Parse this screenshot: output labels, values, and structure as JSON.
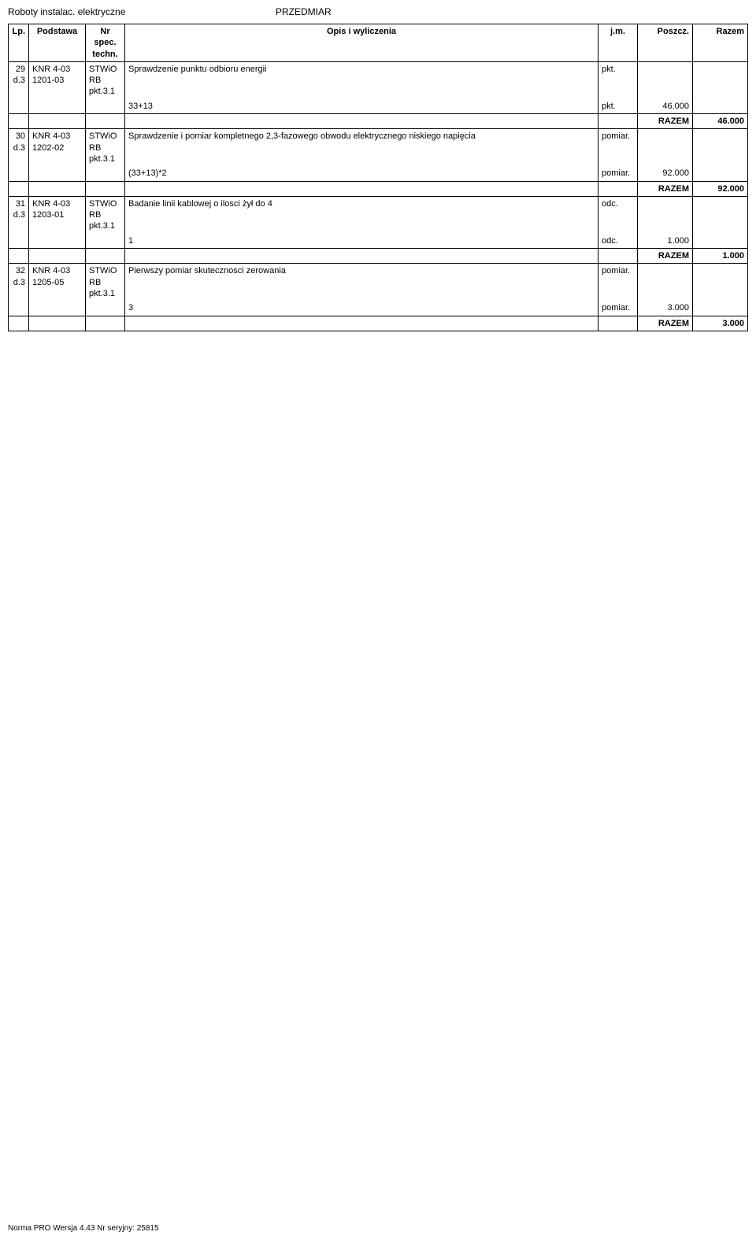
{
  "header": {
    "left": "Roboty instalac. elektryczne",
    "center": "PRZEDMIAR"
  },
  "columns": {
    "lp": "Lp.",
    "podstawa": "Podstawa",
    "nr": "Nr spec. techn.",
    "opis": "Opis i wyliczenia",
    "jm": "j.m.",
    "poszcz": "Poszcz.",
    "razem": "Razem"
  },
  "rows": [
    {
      "lp": "29",
      "d": "d.3",
      "podstawa": "KNR 4-03",
      "podstawa2": "1201-03",
      "nr": "STWiO RB pkt.3.1",
      "opis": "Sprawdzenie punktu odbioru energii",
      "jm": "pkt.",
      "calc": "33+13",
      "calc_jm": "pkt.",
      "calc_val": "46.000",
      "razem_label": "RAZEM",
      "razem_val": "46.000"
    },
    {
      "lp": "30",
      "d": "d.3",
      "podstawa": "KNR 4-03",
      "podstawa2": "1202-02",
      "nr": "STWiO RB pkt.3.1",
      "opis": "Sprawdzenie i pomiar kompletnego 2,3-fazowego obwodu elektrycznego niskiego napięcia",
      "jm": "pomiar.",
      "calc": "(33+13)*2",
      "calc_jm": "pomiar.",
      "calc_val": "92.000",
      "razem_label": "RAZEM",
      "razem_val": "92.000"
    },
    {
      "lp": "31",
      "d": "d.3",
      "podstawa": "KNR 4-03",
      "podstawa2": "1203-01",
      "nr": "STWiO RB pkt.3.1",
      "opis": "Badanie linii kablowej o ilosci żył do 4",
      "jm": "odc.",
      "calc": "1",
      "calc_jm": "odc.",
      "calc_val": "1.000",
      "razem_label": "RAZEM",
      "razem_val": "1.000"
    },
    {
      "lp": "32",
      "d": "d.3",
      "podstawa": "KNR 4-03",
      "podstawa2": "1205-05",
      "nr": "STWiO RB pkt.3.1",
      "opis": "Pierwszy pomiar skutecznosci zerowania",
      "jm": "pomiar.",
      "calc": "3",
      "calc_jm": "pomiar.",
      "calc_val": "3.000",
      "razem_label": "RAZEM",
      "razem_val": "3.000"
    }
  ],
  "footer": "Norma PRO Wersja 4.43 Nr seryjny: 25815"
}
